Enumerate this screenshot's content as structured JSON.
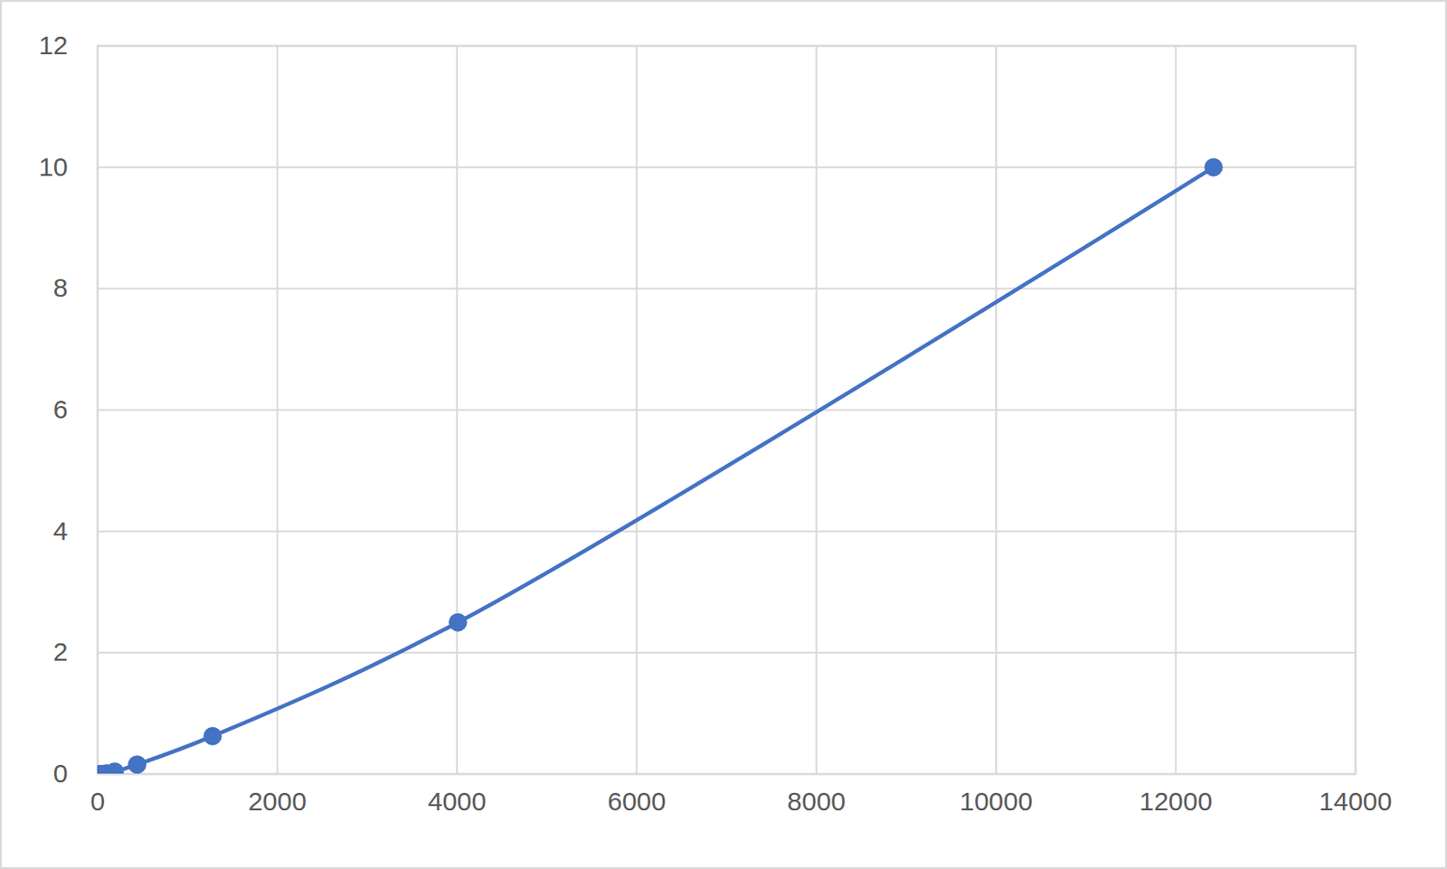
{
  "chart_data": {
    "type": "line",
    "x": [
      30,
      100,
      190,
      440,
      1280,
      4010,
      12420
    ],
    "series": [
      {
        "color": "#4472c4",
        "values": [
          0,
          0.01,
          0.04,
          0.156,
          0.625,
          2.5,
          10
        ],
        "marker": "circle",
        "line_style": "solid"
      }
    ],
    "xlim": [
      0,
      14000
    ],
    "xticks": [
      0,
      2000,
      4000,
      6000,
      8000,
      10000,
      12000,
      14000
    ],
    "ylim": [
      0,
      12
    ],
    "yticks": [
      0,
      2,
      4,
      6,
      8,
      10,
      12
    ],
    "grid": true
  }
}
